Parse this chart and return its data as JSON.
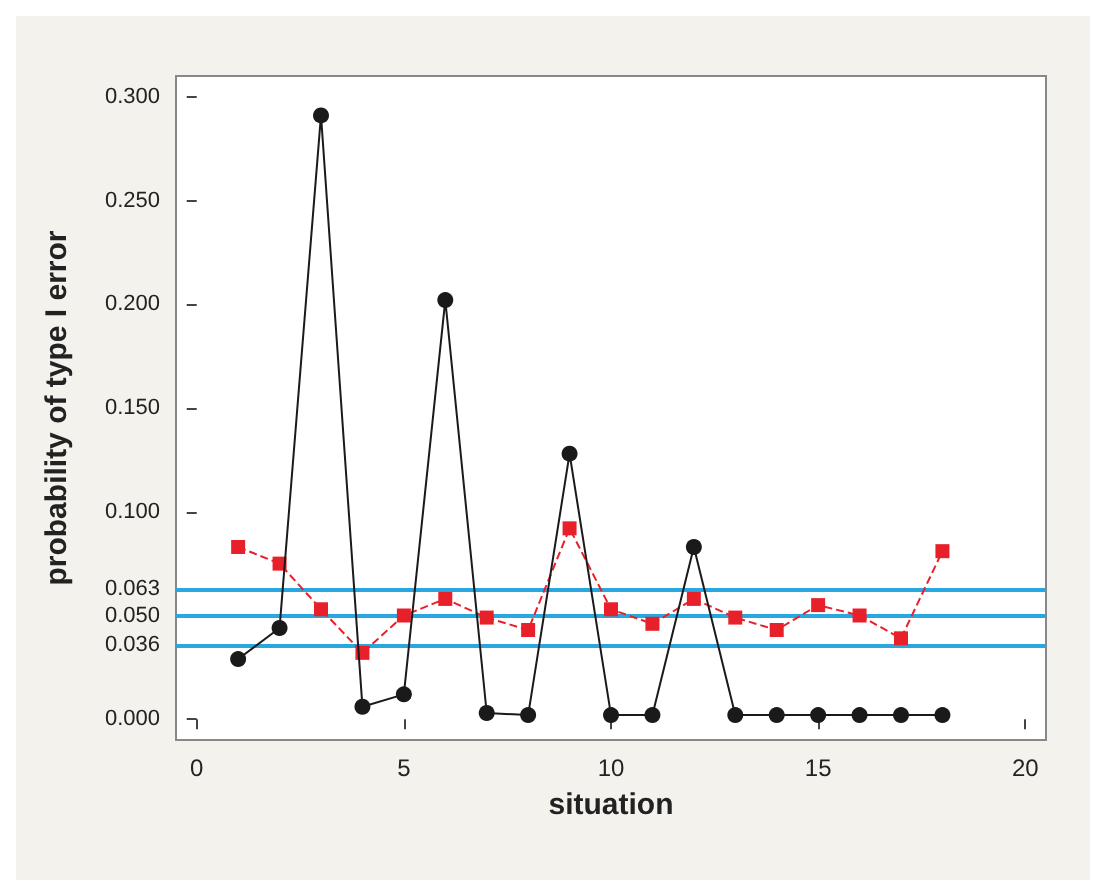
{
  "chart_data": {
    "type": "line",
    "xlabel": "situation",
    "ylabel": "probability of type I error",
    "x": [
      1,
      2,
      3,
      4,
      5,
      6,
      7,
      8,
      9,
      10,
      11,
      12,
      13,
      14,
      15,
      16,
      17,
      18
    ],
    "series": [
      {
        "color": "#1a1a1a",
        "marker": "circle",
        "line_style": "solid",
        "values": [
          0.029,
          0.044,
          0.291,
          0.006,
          0.012,
          0.202,
          0.003,
          0.002,
          0.128,
          0.002,
          0.002,
          0.083,
          0.002,
          0.002,
          0.002,
          0.002,
          0.002,
          0.002
        ]
      },
      {
        "color": "#e8202a",
        "marker": "square",
        "line_style": "dashed",
        "values": [
          0.083,
          0.075,
          0.053,
          0.032,
          0.05,
          0.058,
          0.049,
          0.043,
          0.092,
          0.053,
          0.046,
          0.058,
          0.049,
          0.043,
          0.055,
          0.05,
          0.039,
          0.081
        ]
      }
    ],
    "xlim": [
      -0.5,
      20.5
    ],
    "xticks": [
      0,
      5,
      10,
      15,
      20
    ],
    "ylim": [
      -0.01,
      0.31
    ],
    "yticks": [
      {
        "value": 0,
        "label": "0.000"
      },
      {
        "value": 0.036,
        "label": "0.036"
      },
      {
        "value": 0.05,
        "label": "0.050"
      },
      {
        "value": 0.063,
        "label": "0.063"
      },
      {
        "value": 0.1,
        "label": "0.100"
      },
      {
        "value": 0.15,
        "label": "0.150"
      },
      {
        "value": 0.2,
        "label": "0.200"
      },
      {
        "value": 0.25,
        "label": "0.250"
      },
      {
        "value": 0.3,
        "label": "0.300"
      }
    ],
    "ref_lines": [
      {
        "axis": "y",
        "value": 0.036,
        "color": "#29a8e0"
      },
      {
        "axis": "y",
        "value": 0.05,
        "color": "#29a8e0"
      },
      {
        "axis": "y",
        "value": 0.063,
        "color": "#29a8e0"
      }
    ],
    "grid": false
  }
}
